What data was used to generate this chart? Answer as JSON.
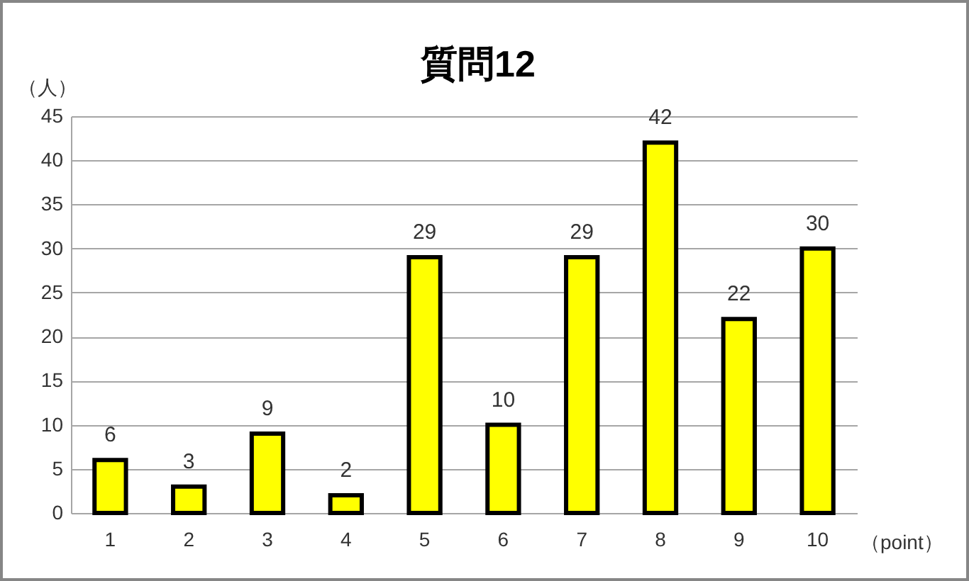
{
  "chart_data": {
    "type": "bar",
    "title": "質問12",
    "ylabel": "（人）",
    "xlabel": "（point）",
    "categories": [
      "1",
      "2",
      "3",
      "4",
      "5",
      "6",
      "7",
      "8",
      "9",
      "10"
    ],
    "values": [
      6,
      3,
      9,
      2,
      29,
      10,
      29,
      42,
      22,
      30
    ],
    "color": "#ffff00",
    "ylim": [
      0,
      45
    ],
    "yticks": [
      0,
      5,
      10,
      15,
      20,
      25,
      30,
      35,
      40,
      45
    ],
    "grid": "y",
    "data_labels": true
  }
}
